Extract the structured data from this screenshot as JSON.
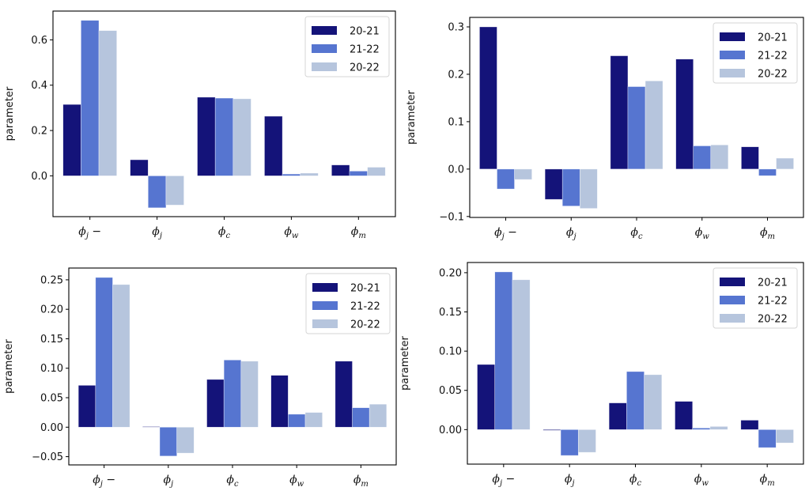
{
  "chart_data": [
    {
      "type": "bar",
      "title": "",
      "xlabel": "",
      "ylabel": "parameter",
      "categories": [
        "φj−",
        "φj",
        "φc",
        "φw",
        "φm"
      ],
      "ylim": [
        -0.18,
        0.727
      ],
      "yticks": [
        0.0,
        0.2,
        0.4,
        0.6
      ],
      "ytick_labels": [
        "0.0",
        "0.2",
        "0.4",
        "0.6"
      ],
      "legend": "top-right",
      "series": [
        {
          "name": "20-21",
          "color": "#141379",
          "values": [
            0.315,
            0.071,
            0.347,
            0.263,
            0.048
          ]
        },
        {
          "name": "21-22",
          "color": "#5675D0",
          "values": [
            0.686,
            -0.141,
            0.343,
            0.008,
            0.021
          ]
        },
        {
          "name": "20-22",
          "color": "#B6C5DD",
          "values": [
            0.641,
            -0.129,
            0.34,
            0.012,
            0.038
          ]
        }
      ]
    },
    {
      "type": "bar",
      "title": "",
      "xlabel": "",
      "ylabel": "parameter",
      "categories": [
        "φj−",
        "φj",
        "φc",
        "φw",
        "φm"
      ],
      "ylim": [
        -0.102,
        0.32
      ],
      "yticks": [
        -0.1,
        0.0,
        0.1,
        0.2,
        0.3
      ],
      "ytick_labels": [
        "−0.1",
        "0.0",
        "0.1",
        "0.2",
        "0.3"
      ],
      "legend": "top-right",
      "series": [
        {
          "name": "20-21",
          "color": "#141379",
          "values": [
            0.3,
            -0.064,
            0.239,
            0.232,
            0.047
          ]
        },
        {
          "name": "21-22",
          "color": "#5675D0",
          "values": [
            -0.042,
            -0.078,
            0.174,
            0.049,
            -0.014
          ]
        },
        {
          "name": "20-22",
          "color": "#B6C5DD",
          "values": [
            -0.022,
            -0.083,
            0.186,
            0.051,
            0.023
          ]
        }
      ]
    },
    {
      "type": "bar",
      "title": "",
      "xlabel": "",
      "ylabel": "parameter",
      "categories": [
        "φj−",
        "φj",
        "φc",
        "φw",
        "φm"
      ],
      "ylim": [
        -0.064,
        0.27
      ],
      "yticks": [
        -0.05,
        0.0,
        0.05,
        0.1,
        0.15,
        0.2,
        0.25
      ],
      "ytick_labels": [
        "−0.05",
        "0.00",
        "0.05",
        "0.10",
        "0.15",
        "0.20",
        "0.25"
      ],
      "legend": "top-right",
      "series": [
        {
          "name": "20-21",
          "color": "#141379",
          "values": [
            0.071,
            0.001,
            0.081,
            0.088,
            0.112
          ]
        },
        {
          "name": "21-22",
          "color": "#5675D0",
          "values": [
            0.254,
            -0.049,
            0.114,
            0.022,
            0.033
          ]
        },
        {
          "name": "20-22",
          "color": "#B6C5DD",
          "values": [
            0.242,
            -0.044,
            0.112,
            0.025,
            0.039
          ]
        }
      ]
    },
    {
      "type": "bar",
      "title": "",
      "xlabel": "",
      "ylabel": "parameter",
      "categories": [
        "φj−",
        "φj",
        "φc",
        "φw",
        "φm"
      ],
      "ylim": [
        -0.044,
        0.213
      ],
      "yticks": [
        0.0,
        0.05,
        0.1,
        0.15,
        0.2
      ],
      "ytick_labels": [
        "0.00",
        "0.05",
        "0.10",
        "0.15",
        "0.20"
      ],
      "legend": "top-right",
      "series": [
        {
          "name": "20-21",
          "color": "#141379",
          "values": [
            0.083,
            -0.001,
            0.034,
            0.036,
            0.012
          ]
        },
        {
          "name": "21-22",
          "color": "#5675D0",
          "values": [
            0.201,
            -0.033,
            0.074,
            0.002,
            -0.023
          ]
        },
        {
          "name": "20-22",
          "color": "#B6C5DD",
          "values": [
            0.191,
            -0.029,
            0.07,
            0.004,
            -0.017
          ]
        }
      ]
    }
  ],
  "xtick_symbols": [
    {
      "base": "ϕ",
      "sub": "j",
      "suffix": " −"
    },
    {
      "base": "ϕ",
      "sub": "j",
      "suffix": ""
    },
    {
      "base": "ϕ",
      "sub": "c",
      "suffix": ""
    },
    {
      "base": "ϕ",
      "sub": "w",
      "suffix": ""
    },
    {
      "base": "ϕ",
      "sub": "m",
      "suffix": ""
    }
  ]
}
